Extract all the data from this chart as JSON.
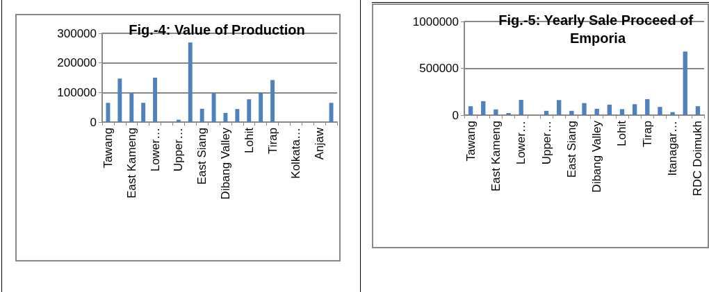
{
  "chart_data": [
    {
      "type": "bar",
      "title": "Fig.-4: Value of Production",
      "categories": [
        "Tawang",
        null,
        "East Kameng",
        null,
        "Lower…",
        null,
        "Upper…",
        null,
        "East Siang",
        null,
        "Dibang Valley",
        null,
        "Lohit",
        null,
        "Tirap",
        null,
        "Kolkata…",
        null,
        "Anjaw",
        null
      ],
      "values": [
        65000,
        147000,
        98000,
        65000,
        150000,
        0,
        8000,
        269000,
        45000,
        98000,
        31000,
        44000,
        77000,
        99000,
        142000,
        0,
        0,
        0,
        0,
        65000
      ],
      "color": "#4f81bd",
      "ylim": [
        0,
        300000
      ],
      "yticks": [
        0,
        100000,
        200000,
        300000
      ],
      "grid": "y"
    },
    {
      "type": "bar",
      "title": "Fig.-5: Yearly Sale Proceed of Emporia",
      "categories": [
        "Tawang",
        null,
        "East Kameng",
        null,
        "Lower…",
        null,
        "Upper…",
        null,
        "East Siang",
        null,
        "Dibang Valley",
        null,
        "Lohit",
        null,
        "Tirap",
        null,
        "Itanagar…",
        null,
        "RDC Doimukh"
      ],
      "values": [
        95000,
        149000,
        61000,
        22000,
        163000,
        0,
        46000,
        161000,
        46000,
        129000,
        68000,
        112000,
        64000,
        117000,
        171000,
        88000,
        32000,
        679000,
        95000
      ],
      "color": "#4f81bd",
      "ylim": [
        0,
        1000000
      ],
      "yticks": [
        0,
        500000,
        1000000
      ],
      "grid": "y"
    }
  ]
}
